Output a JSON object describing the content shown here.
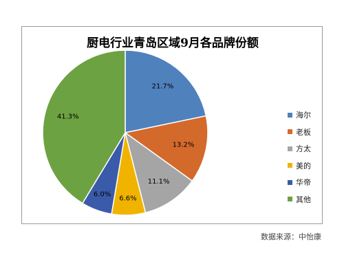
{
  "chart_data": {
    "type": "pie",
    "title": "厨电行业青岛区域9月各品牌份额",
    "categories": [
      "海尔",
      "老板",
      "方太",
      "美的",
      "华帝",
      "其他"
    ],
    "values": [
      21.7,
      13.2,
      11.1,
      6.6,
      6.0,
      41.3
    ],
    "data_labels": [
      "21.7%",
      "13.2%",
      "11.1%",
      "6.6%",
      "6.0%",
      "41.3%"
    ],
    "colors": [
      "#4f81bd",
      "#d4692c",
      "#a5a5a5",
      "#f0b400",
      "#3a5ba9",
      "#6da242"
    ],
    "start_angle": "top",
    "direction": "clockwise",
    "legend_position": "right"
  },
  "source_note": "数据来源：中怡康"
}
